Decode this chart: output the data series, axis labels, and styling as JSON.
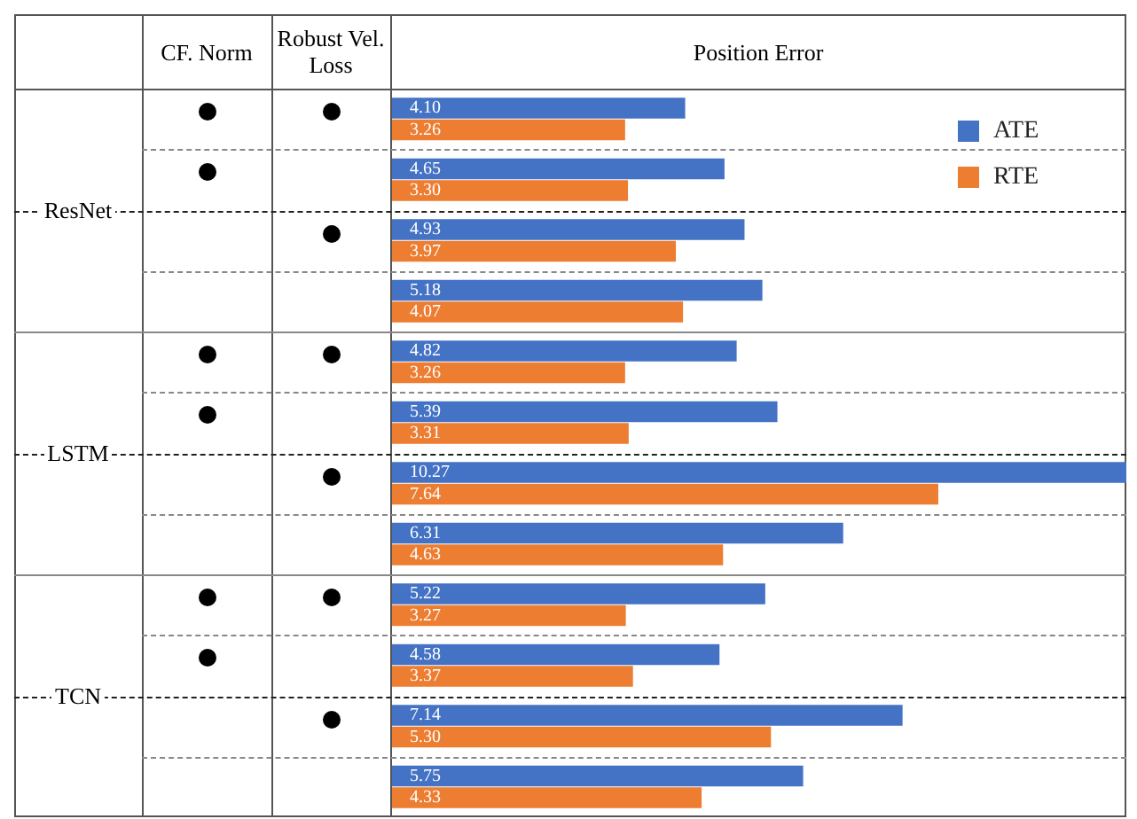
{
  "chart_data": {
    "type": "bar",
    "orientation": "horizontal",
    "xlabel": "Position Error",
    "annotations": [
      "CF. Norm",
      "Robust Vel. Loss",
      "ResNet",
      "LSTM",
      "TCN"
    ],
    "categories": [
      null,
      null,
      null,
      null,
      null,
      null,
      null,
      null,
      null,
      null,
      null,
      null
    ],
    "series": [
      {
        "name": "ATE",
        "color": "#4472c4",
        "values": [
          4.1,
          4.65,
          4.93,
          5.18,
          4.82,
          5.39,
          10.27,
          6.31,
          5.22,
          4.58,
          7.14,
          5.75
        ],
        "value_labels": [
          "4.10",
          "4.65",
          "4.93",
          "5.18",
          "4.82",
          "5.39",
          "10.27",
          "6.31",
          "5.22",
          "4.58",
          "7.14",
          "5.75"
        ]
      },
      {
        "name": "RTE",
        "color": "#ed7d31",
        "values": [
          3.26,
          3.3,
          3.97,
          4.07,
          3.26,
          3.31,
          7.64,
          4.63,
          3.27,
          3.37,
          5.3,
          4.33
        ],
        "value_labels": [
          "3.26",
          "3.30",
          "3.97",
          "4.07",
          "3.26",
          "3.31",
          "7.64",
          "4.63",
          "3.27",
          "3.37",
          "5.30",
          "4.33"
        ]
      }
    ],
    "legend": "top right",
    "tick_labels": false
  }
}
